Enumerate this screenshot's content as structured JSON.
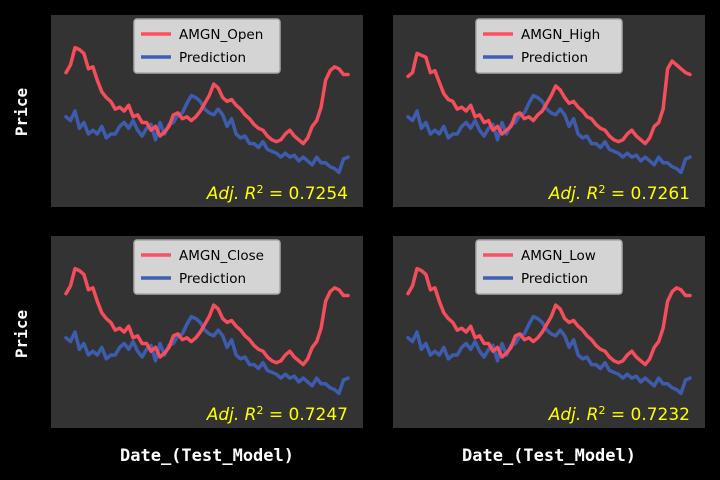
{
  "figure": {
    "background": "#000000",
    "panel_background": "#333333",
    "actual_color": "#ff4f5e",
    "prediction_color": "#3f5fb5",
    "annotation_color": "#ffff00",
    "ylabel": "Price",
    "xlabel": "Date_(Test_Model)"
  },
  "chart_data": [
    {
      "type": "line",
      "legend_location": "top-center",
      "ylim": [
        0,
        100
      ],
      "series": [
        {
          "name": "AMGN_Open",
          "values": [
            70,
            74,
            83,
            82,
            80,
            72,
            73,
            66,
            60,
            57,
            55,
            51,
            52,
            50,
            53,
            47,
            48,
            44,
            44,
            40,
            42,
            37,
            39,
            42,
            48,
            49,
            46,
            47,
            45,
            47,
            50,
            54,
            58,
            64,
            62,
            57,
            55,
            56,
            53,
            51,
            48,
            46,
            43,
            41,
            40,
            37,
            35,
            34,
            35,
            38,
            40,
            37,
            35,
            33,
            36,
            42,
            45,
            52,
            66,
            71,
            73,
            72,
            69,
            69
          ]
        },
        {
          "name": "Prediction",
          "values": [
            47,
            45,
            50,
            41,
            44,
            38,
            40,
            38,
            42,
            36,
            38,
            38,
            42,
            44,
            41,
            45,
            40,
            37,
            41,
            43,
            35,
            44,
            38,
            43,
            44,
            48,
            49,
            54,
            58,
            57,
            55,
            51,
            49,
            48,
            51,
            48,
            42,
            46,
            38,
            36,
            37,
            33,
            33,
            31,
            34,
            30,
            29,
            28,
            26,
            28,
            26,
            27,
            24,
            26,
            24,
            22,
            26,
            23,
            23,
            21,
            20,
            18,
            25,
            26
          ]
        }
      ],
      "annotation": {
        "prefix": "Adj. R",
        "sup": "2",
        "value": " = 0.7254"
      }
    },
    {
      "type": "line",
      "legend_location": "top-center",
      "ylim": [
        0,
        100
      ],
      "series": [
        {
          "name": "AMGN_High",
          "values": [
            68,
            70,
            80,
            79,
            78,
            70,
            71,
            65,
            59,
            56,
            55,
            51,
            52,
            50,
            53,
            47,
            48,
            44,
            45,
            40,
            42,
            38,
            40,
            42,
            48,
            49,
            46,
            47,
            45,
            48,
            50,
            54,
            58,
            63,
            61,
            57,
            54,
            55,
            52,
            50,
            47,
            46,
            43,
            41,
            40,
            37,
            35,
            34,
            35,
            38,
            40,
            37,
            35,
            33,
            36,
            42,
            44,
            51,
            72,
            76,
            74,
            72,
            70,
            69
          ]
        },
        {
          "name": "Prediction",
          "values": [
            47,
            45,
            50,
            41,
            44,
            38,
            40,
            38,
            42,
            36,
            38,
            38,
            42,
            44,
            41,
            45,
            40,
            37,
            41,
            43,
            35,
            44,
            38,
            43,
            44,
            48,
            49,
            54,
            58,
            57,
            55,
            51,
            49,
            48,
            51,
            48,
            42,
            46,
            38,
            36,
            37,
            33,
            33,
            31,
            34,
            30,
            29,
            28,
            26,
            28,
            26,
            27,
            24,
            26,
            24,
            22,
            26,
            23,
            23,
            21,
            20,
            18,
            25,
            26
          ]
        }
      ],
      "annotation": {
        "prefix": "Adj. R",
        "sup": "2",
        "value": " = 0.7261"
      }
    },
    {
      "type": "line",
      "legend_location": "top-center",
      "ylim": [
        0,
        100
      ],
      "series": [
        {
          "name": "AMGN_Close",
          "values": [
            70,
            74,
            83,
            82,
            80,
            72,
            73,
            66,
            60,
            57,
            55,
            51,
            52,
            50,
            53,
            47,
            48,
            44,
            44,
            40,
            42,
            37,
            39,
            42,
            48,
            49,
            46,
            47,
            45,
            47,
            50,
            54,
            58,
            64,
            62,
            57,
            55,
            56,
            53,
            51,
            48,
            46,
            43,
            41,
            40,
            37,
            35,
            34,
            35,
            38,
            40,
            37,
            35,
            33,
            36,
            42,
            45,
            52,
            66,
            71,
            73,
            72,
            69,
            69
          ]
        },
        {
          "name": "Prediction",
          "values": [
            47,
            45,
            50,
            41,
            44,
            38,
            40,
            38,
            42,
            36,
            38,
            38,
            42,
            44,
            41,
            45,
            40,
            37,
            41,
            43,
            35,
            44,
            38,
            43,
            44,
            48,
            49,
            54,
            58,
            57,
            55,
            51,
            49,
            48,
            51,
            48,
            42,
            46,
            38,
            36,
            37,
            33,
            33,
            31,
            34,
            30,
            29,
            28,
            26,
            28,
            26,
            27,
            24,
            26,
            24,
            22,
            26,
            23,
            23,
            21,
            20,
            18,
            25,
            26
          ]
        }
      ],
      "annotation": {
        "prefix": "Adj. R",
        "sup": "2",
        "value": " = 0.7247"
      }
    },
    {
      "type": "line",
      "legend_location": "top-center",
      "ylim": [
        0,
        100
      ],
      "series": [
        {
          "name": "AMGN_Low",
          "values": [
            70,
            74,
            83,
            82,
            80,
            72,
            73,
            66,
            60,
            57,
            55,
            51,
            52,
            50,
            53,
            47,
            48,
            44,
            44,
            40,
            42,
            37,
            39,
            42,
            48,
            49,
            46,
            47,
            45,
            47,
            50,
            54,
            58,
            64,
            62,
            57,
            55,
            56,
            53,
            51,
            48,
            46,
            43,
            41,
            40,
            37,
            35,
            34,
            35,
            38,
            40,
            37,
            35,
            33,
            36,
            42,
            45,
            52,
            66,
            71,
            73,
            72,
            69,
            69
          ]
        },
        {
          "name": "Prediction",
          "values": [
            47,
            45,
            50,
            41,
            44,
            38,
            40,
            38,
            42,
            36,
            38,
            38,
            42,
            44,
            41,
            45,
            40,
            37,
            41,
            43,
            35,
            44,
            38,
            43,
            44,
            48,
            49,
            54,
            58,
            57,
            55,
            51,
            49,
            48,
            51,
            48,
            42,
            46,
            38,
            36,
            37,
            33,
            33,
            31,
            34,
            30,
            29,
            28,
            26,
            28,
            26,
            27,
            24,
            26,
            24,
            22,
            26,
            23,
            23,
            21,
            20,
            18,
            25,
            26
          ]
        }
      ],
      "annotation": {
        "prefix": "Adj. R",
        "sup": "2",
        "value": " = 0.7232"
      }
    }
  ]
}
